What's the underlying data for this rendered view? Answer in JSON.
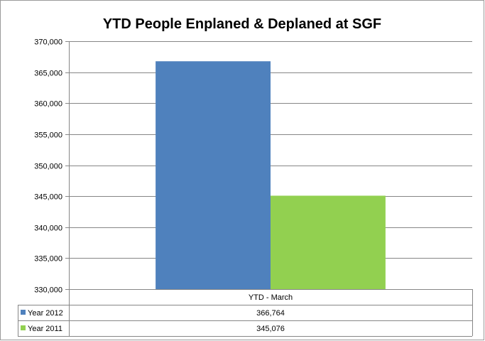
{
  "chart_data": {
    "type": "bar",
    "title": "YTD People Enplaned & Deplaned at SGF",
    "categories": [
      "YTD - March"
    ],
    "series": [
      {
        "name": "Year 2012",
        "values": [
          366764
        ],
        "value_labels": [
          "366,764"
        ],
        "color": "#4F81BD"
      },
      {
        "name": "Year 2011",
        "values": [
          345076
        ],
        "value_labels": [
          "345,076"
        ],
        "color": "#92D050"
      }
    ],
    "ylim": [
      330000,
      370000
    ],
    "y_ticks": [
      "330,000",
      "335,000",
      "340,000",
      "345,000",
      "350,000",
      "355,000",
      "360,000",
      "365,000",
      "370,000"
    ],
    "grid": true,
    "legend": "data-table"
  }
}
